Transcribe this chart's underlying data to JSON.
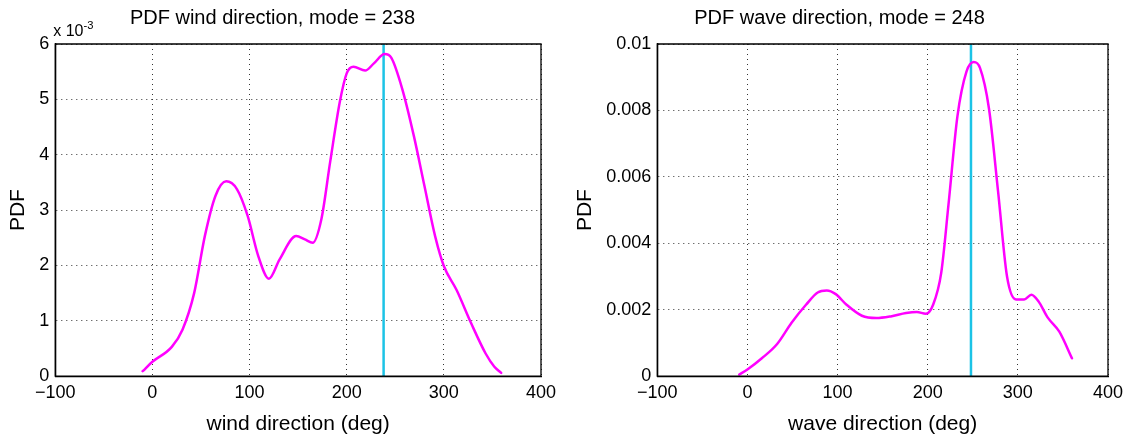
{
  "chart_data": [
    {
      "type": "line",
      "title": "PDF wind direction, mode = 238",
      "xlabel": "wind direction (deg)",
      "ylabel": "PDF",
      "annotations": [
        "x 10$^{-3}$"
      ],
      "x": [
        -10,
        0,
        20,
        31,
        43,
        54,
        65,
        76,
        87,
        98,
        109,
        120,
        131,
        148,
        157,
        165,
        174,
        183,
        193,
        200,
        207,
        219,
        228,
        239,
        246,
        257,
        269,
        280,
        291,
        300,
        313,
        328,
        343,
        352,
        359
      ],
      "series": [
        {
          "color": "#ff00ff",
          "values": [
            0.09,
            0.26,
            0.53,
            0.84,
            1.5,
            2.53,
            3.26,
            3.52,
            3.38,
            2.9,
            2.17,
            1.76,
            2.11,
            2.53,
            2.47,
            2.41,
            2.84,
            3.87,
            4.96,
            5.47,
            5.59,
            5.52,
            5.65,
            5.82,
            5.75,
            5.2,
            4.35,
            3.44,
            2.53,
            1.99,
            1.56,
            0.96,
            0.41,
            0.17,
            0.06
          ]
        }
      ],
      "xlim": [
        -100,
        400
      ],
      "xticks": [
        {
          "value": -100,
          "label": "−100"
        },
        0,
        100,
        200,
        300,
        400
      ],
      "ylim": [
        0,
        6
      ],
      "yticks": [
        0,
        1,
        2,
        3,
        4,
        5,
        6
      ],
      "grid": true,
      "line_style": "solid",
      "ref_lines": [
        {
          "axis": "x",
          "value": 238,
          "color": "#1cc3e6"
        }
      ]
    },
    {
      "type": "line",
      "title": "PDF wave direction, mode = 248",
      "xlabel": "wave direction (deg)",
      "ylabel": "PDF",
      "x": [
        -9,
        0,
        16,
        33,
        49,
        65,
        78,
        88,
        98,
        110,
        127,
        143,
        159,
        176,
        188,
        198,
        206,
        215,
        223,
        233,
        243,
        251,
        258,
        268,
        278,
        288,
        298,
        307,
        315,
        323,
        333,
        346,
        360
      ],
      "series": [
        {
          "color": "#ff00ff",
          "values": [
            5e-05,
            0.0002,
            0.00054,
            0.00097,
            0.00161,
            0.00215,
            0.00252,
            0.00258,
            0.00247,
            0.00215,
            0.00182,
            0.00175,
            0.0018,
            0.0019,
            0.00193,
            0.00188,
            0.00215,
            0.00311,
            0.00515,
            0.00783,
            0.00917,
            0.00946,
            0.00928,
            0.00805,
            0.00558,
            0.003,
            0.00231,
            0.00231,
            0.00245,
            0.00225,
            0.00177,
            0.00134,
            0.00054
          ]
        }
      ],
      "xlim": [
        -100,
        400
      ],
      "xticks": [
        {
          "value": -100,
          "label": "−100"
        },
        0,
        100,
        200,
        300,
        400
      ],
      "ylim": [
        0,
        0.01
      ],
      "yticks": [
        0,
        0.002,
        0.004,
        0.006,
        0.008,
        0.01
      ],
      "grid": true,
      "line_style": "solid",
      "ref_lines": [
        {
          "axis": "x",
          "value": 248,
          "color": "#1cc3e6"
        }
      ]
    }
  ]
}
